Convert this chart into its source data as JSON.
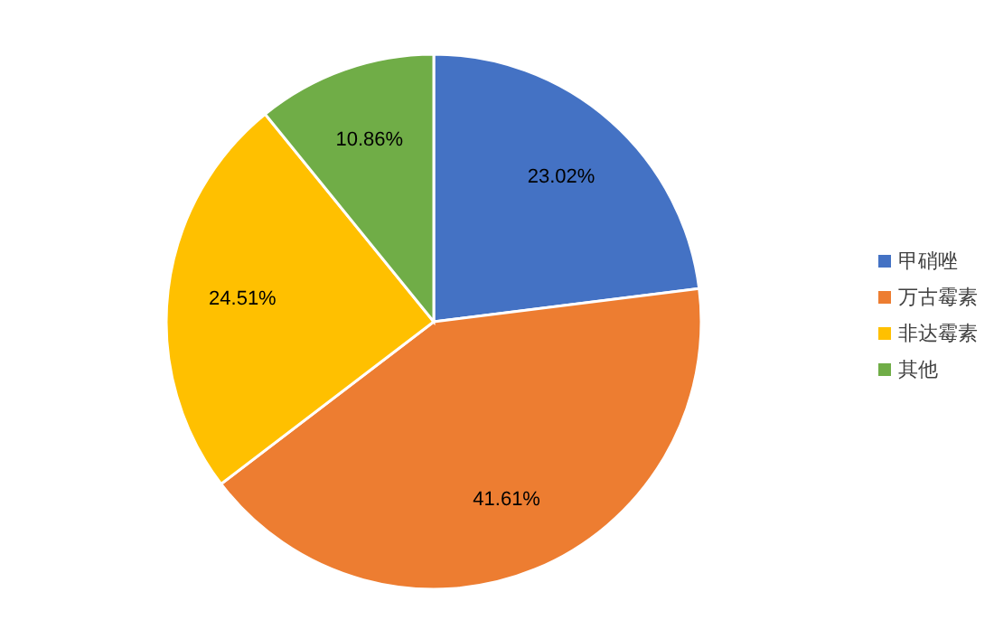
{
  "chart_data": {
    "type": "pie",
    "categories": [
      "甲硝唑",
      "万古霉素",
      "非达霉素",
      "其他"
    ],
    "values": [
      23.02,
      41.61,
      24.51,
      10.86
    ],
    "colors": [
      "#4472c4",
      "#ed7d31",
      "#ffc000",
      "#70ad47"
    ],
    "value_labels": [
      "23.02%",
      "41.61%",
      "24.51%",
      "10.86%"
    ],
    "legend": "right"
  }
}
